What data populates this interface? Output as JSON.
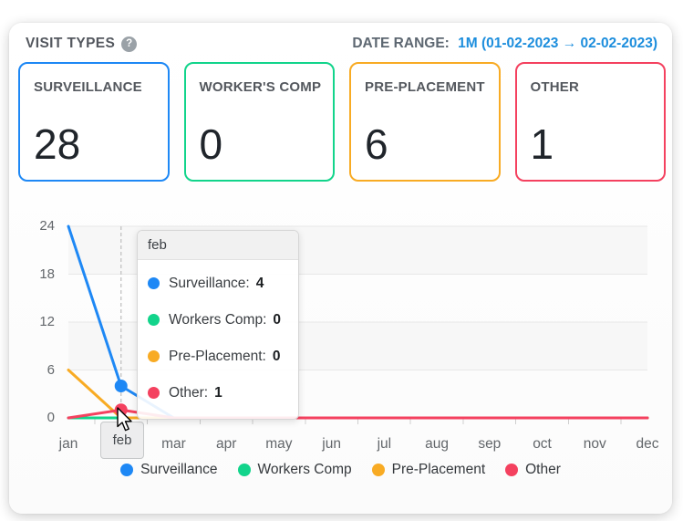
{
  "panel": {
    "title": "VISIT TYPES",
    "help_icon": "?",
    "date_range_label": "DATE RANGE:",
    "date_range_value": "1M (01-02-2023 → 02-02-2023)"
  },
  "cards": [
    {
      "label": "SURVEILLANCE",
      "value": "28",
      "color": "#1e88f5"
    },
    {
      "label": "WORKER'S COMP",
      "value": "0",
      "color": "#12d48b"
    },
    {
      "label": "PRE-PLACEMENT",
      "value": "6",
      "color": "#f8ab24"
    },
    {
      "label": "OTHER",
      "value": "1",
      "color": "#f4415f"
    }
  ],
  "chart_data": {
    "type": "line",
    "categories": [
      "jan",
      "feb",
      "mar",
      "apr",
      "may",
      "jun",
      "jul",
      "aug",
      "sep",
      "oct",
      "nov",
      "dec"
    ],
    "series": [
      {
        "name": "Surveillance",
        "color": "#1e88f5",
        "values": [
          24,
          4,
          0,
          0,
          0,
          0,
          0,
          0,
          0,
          0,
          0,
          0
        ]
      },
      {
        "name": "Workers Comp",
        "color": "#12d48b",
        "values": [
          0,
          0,
          0,
          0,
          0,
          0,
          0,
          0,
          0,
          0,
          0,
          0
        ]
      },
      {
        "name": "Pre-Placement",
        "color": "#f8ab24",
        "values": [
          6,
          0,
          0,
          0,
          0,
          0,
          0,
          0,
          0,
          0,
          0,
          0
        ]
      },
      {
        "name": "Other",
        "color": "#f4415f",
        "values": [
          0,
          1,
          0,
          0,
          0,
          0,
          0,
          0,
          0,
          0,
          0,
          0
        ]
      }
    ],
    "yticks": [
      0,
      6,
      12,
      18,
      24
    ],
    "ylim": [
      0,
      24
    ],
    "xlabel": "",
    "ylabel": "",
    "grid": true,
    "alternate_bands": true,
    "legend_position": "bottom",
    "highlight_category": "feb",
    "highlight_index": 1
  },
  "tooltip": {
    "title": "feb",
    "rows": [
      {
        "name": "Surveillance:",
        "value": "4",
        "color": "#1e88f5"
      },
      {
        "name": "Workers Comp:",
        "value": "0",
        "color": "#12d48b"
      },
      {
        "name": "Pre-Placement:",
        "value": "0",
        "color": "#f8ab24"
      },
      {
        "name": "Other:",
        "value": "1",
        "color": "#f4415f"
      }
    ]
  },
  "axis_highlight_label": "feb",
  "icons": {
    "menu": "hamburger-menu-icon",
    "help": "help-icon"
  }
}
